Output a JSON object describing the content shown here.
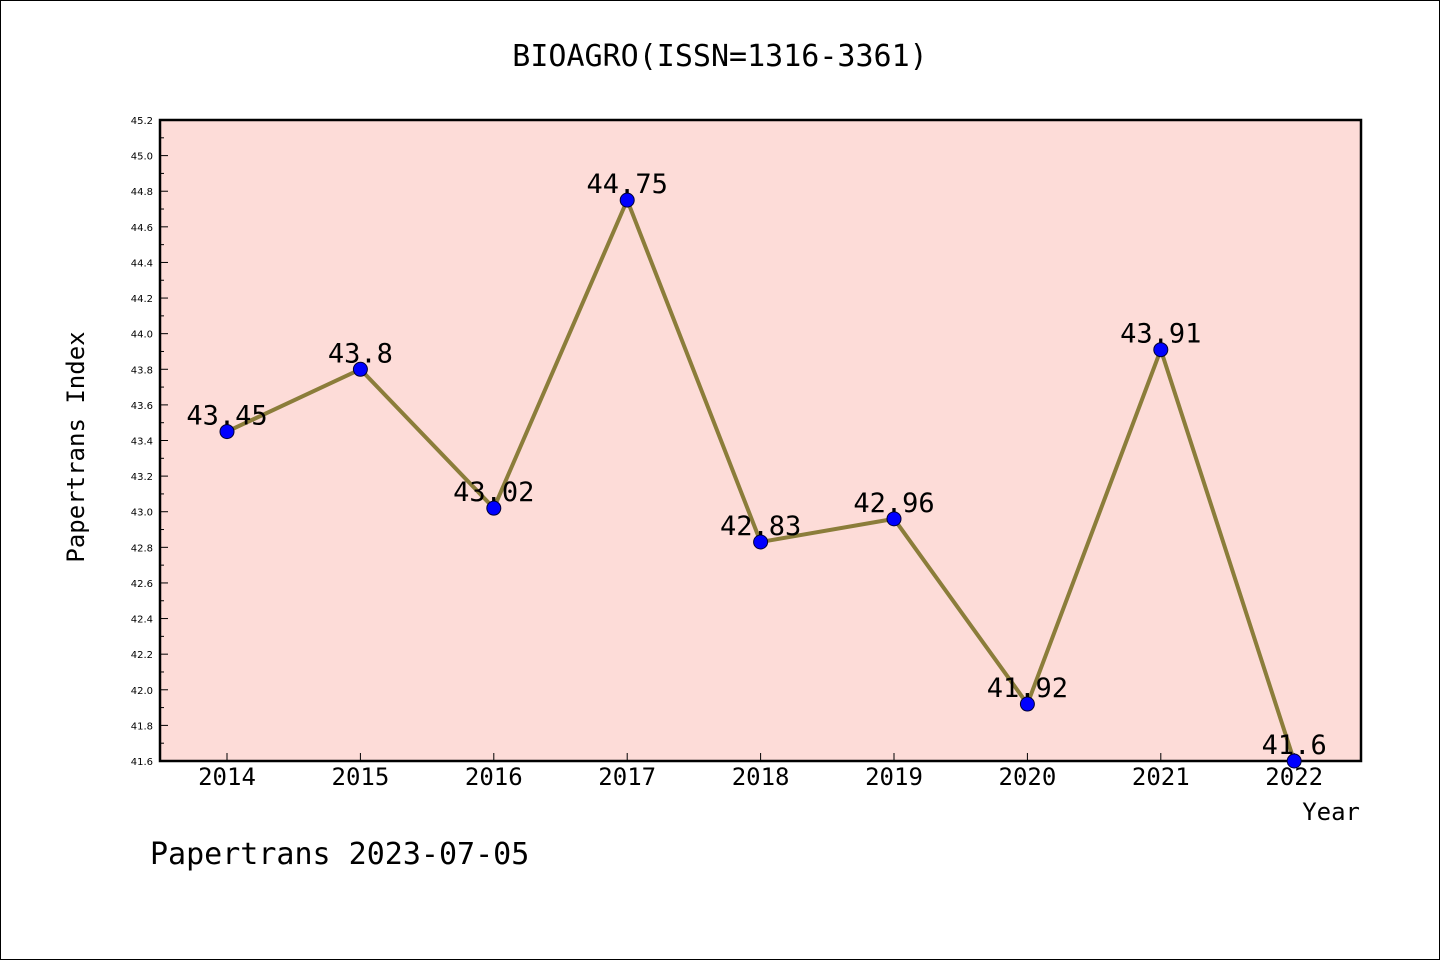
{
  "chart_data": {
    "type": "line",
    "title": "BIOAGRO(ISSN=1316-3361)",
    "xlabel": "Year",
    "ylabel": "Papertrans Index",
    "categories": [
      "2014",
      "2015",
      "2016",
      "2017",
      "2018",
      "2019",
      "2020",
      "2021",
      "2022"
    ],
    "values": [
      43.45,
      43.8,
      43.02,
      44.75,
      42.83,
      42.96,
      41.92,
      43.91,
      41.6
    ],
    "data_labels": [
      "43.45",
      "43.8",
      "43.02",
      "44.75",
      "42.83",
      "42.96",
      "41.92",
      "43.91",
      "41.6"
    ],
    "ylim": [
      41.6,
      45.2
    ],
    "yticks": [
      "41.6",
      "41.8",
      "42.0",
      "42.2",
      "42.4",
      "42.6",
      "42.8",
      "43.0",
      "43.2",
      "43.4",
      "43.6",
      "43.8",
      "44.0",
      "44.2",
      "44.4",
      "44.6",
      "44.8",
      "45.0",
      "45.2"
    ],
    "grid": false,
    "colors": {
      "plot_background": "#fddcd8",
      "line": "#8b7d3a",
      "marker": "#0000ff"
    }
  },
  "footer": "Papertrans 2023-07-05"
}
